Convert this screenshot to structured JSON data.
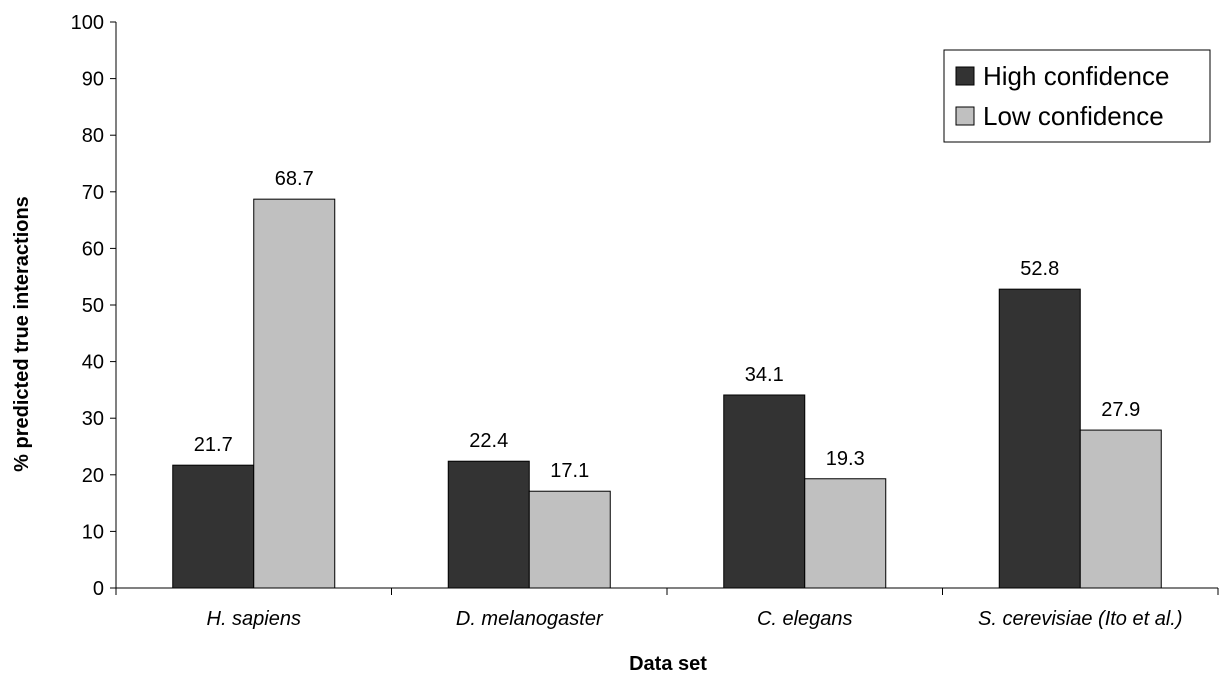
{
  "chart_data": {
    "type": "bar",
    "title": "",
    "xlabel": "Data set",
    "ylabel": "% predicted true interactions",
    "ylim": [
      0,
      100
    ],
    "yticks": [
      0,
      10,
      20,
      30,
      40,
      50,
      60,
      70,
      80,
      90,
      100
    ],
    "grid": false,
    "legend_position": "top-right",
    "categories": [
      "H. sapiens",
      "D. melanogaster",
      "C. elegans",
      "S. cerevisiae (Ito et al.)"
    ],
    "series": [
      {
        "name": "High confidence",
        "color": "#333333",
        "values": [
          21.7,
          22.4,
          34.1,
          52.8
        ],
        "labels": [
          "21.7",
          "22.4",
          "34.1",
          "52.8"
        ]
      },
      {
        "name": "Low confidence",
        "color": "#c0c0c0",
        "values": [
          68.7,
          17.1,
          19.3,
          27.9
        ],
        "labels": [
          "68.7",
          "17.1",
          "19.3",
          "27.9"
        ]
      }
    ]
  }
}
